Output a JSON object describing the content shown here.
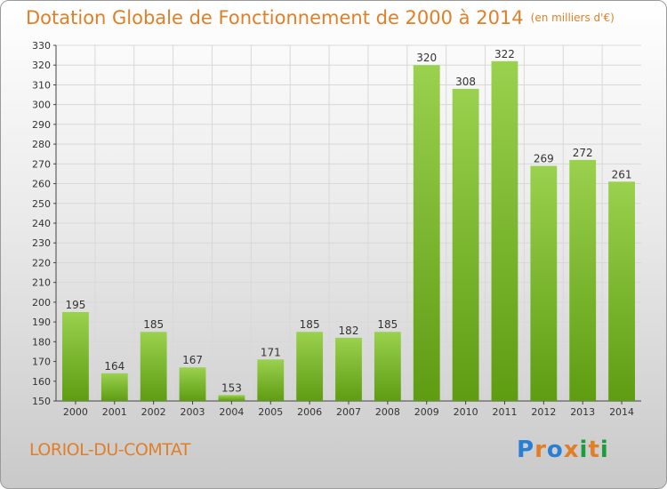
{
  "title": "Dotation Globale de Fonctionnement de 2000 à 2014",
  "title_unit": "(en milliers d'€)",
  "city": "LORIOL-DU-COMTAT",
  "logo": {
    "letters": [
      "P",
      "r",
      "o",
      "x",
      "i",
      "t",
      "i"
    ],
    "colors": [
      "#2a7fd4",
      "#e07f27",
      "#2a7fd4",
      "#e07f27",
      "#1e9b3a",
      "#e07f27",
      "#1e9b3a"
    ]
  },
  "colors": {
    "bar_light": "#9ad14e",
    "bar_dark": "#5e9c12",
    "accent": "#e07f27",
    "grid": "#d8d8d8"
  },
  "chart_data": {
    "type": "bar",
    "categories": [
      "2000",
      "2001",
      "2002",
      "2003",
      "2004",
      "2005",
      "2006",
      "2007",
      "2008",
      "2009",
      "2010",
      "2011",
      "2012",
      "2013",
      "2014"
    ],
    "values": [
      195,
      164,
      185,
      167,
      153,
      171,
      185,
      182,
      185,
      320,
      308,
      322,
      269,
      272,
      261
    ],
    "ylim": [
      150,
      330
    ],
    "yticks": [
      150,
      160,
      170,
      180,
      190,
      200,
      210,
      220,
      230,
      240,
      250,
      260,
      270,
      280,
      290,
      300,
      310,
      320,
      330
    ],
    "grid": true,
    "xlabel": "",
    "ylabel": ""
  }
}
